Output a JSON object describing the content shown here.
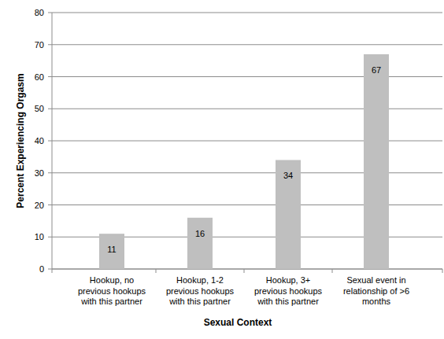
{
  "chart_data": {
    "type": "bar",
    "categories": [
      "Hookup, no previous hookups with this partner",
      "Hookup, 1-2 previous hookups with this partner",
      "Hookup, 3+ previous hookups with this partner",
      "Sexual event in relationship of >6 months"
    ],
    "values": [
      11,
      16,
      34,
      67
    ],
    "color": "#bfbfbf",
    "x_label": "Sexual Context",
    "y_label": "Percent Experiencing Orgasm",
    "ylim": [
      0,
      80
    ],
    "yticks": [
      0,
      10,
      20,
      30,
      40,
      50,
      60,
      70,
      80
    ],
    "grid": true,
    "data_labels": true
  }
}
